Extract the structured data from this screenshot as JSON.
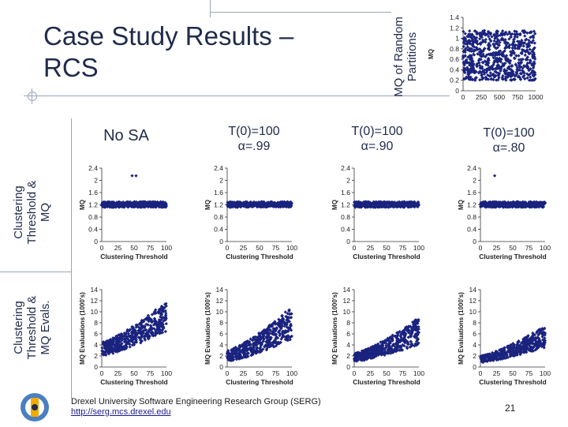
{
  "slide": {
    "title_line1": "Case Study Results –",
    "title_line2": "RCS",
    "top_chart_label_line1": "MQ of Random",
    "top_chart_label_line2": "Partitions",
    "row1_label_line1": "Clustering",
    "row1_label_line2": "Threshold &",
    "row1_label_line3": "MQ",
    "row2_label_line1": "Clustering",
    "row2_label_line2": "Threshold &",
    "row2_label_line3": "MQ Evals.",
    "col_headers": [
      {
        "line1": "No SA",
        "line2": ""
      },
      {
        "line1": "T(0)=100",
        "line2": "α=.99"
      },
      {
        "line1": "T(0)=100",
        "line2": "α=.90"
      },
      {
        "line1": "T(0)=100",
        "line2": "α=.80"
      }
    ],
    "footer_org": "Drexel University Software Engineering Research Group (SERG)",
    "footer_url": "http://serg.mcs.drexel.edu",
    "page_number": "21"
  },
  "chart_data": [
    {
      "id": "random-partitions",
      "type": "scatter",
      "ylabel": "MQ",
      "xlim": [
        0,
        1000
      ],
      "ylim": [
        0,
        1.4
      ],
      "xticks": [
        "0",
        "250",
        "500",
        "750",
        "1000"
      ],
      "yticks": [
        "0",
        "0.2",
        "0.4",
        "0.6",
        "0.8",
        "1",
        "1.2",
        "1.4"
      ],
      "y_range": [
        0.2,
        1.15
      ],
      "color": "#1a237e"
    },
    {
      "id": "mq-nosa",
      "type": "scatter",
      "ylabel": "MQ",
      "xlabel": "Clustering Threshold",
      "xlim": [
        0,
        100
      ],
      "ylim": [
        0,
        2.4
      ],
      "xticks": [
        "0",
        "25",
        "50",
        "75",
        "100"
      ],
      "yticks": [
        "0",
        "0.4",
        "0.8",
        "1.2",
        "1.6",
        "2",
        "2.4"
      ],
      "band": [
        1.12,
        1.3
      ],
      "outliers": [
        {
          "x": 47,
          "y": 2.15
        },
        {
          "x": 53,
          "y": 2.15
        }
      ],
      "color": "#1a237e"
    },
    {
      "id": "mq-a99",
      "type": "scatter",
      "ylabel": "MQ",
      "xlabel": "Clustering Threshold",
      "xlim": [
        0,
        100
      ],
      "ylim": [
        0,
        2.4
      ],
      "xticks": [
        "0",
        "25",
        "50",
        "75",
        "100"
      ],
      "yticks": [
        "0",
        "0.4",
        "0.8",
        "1.2",
        "1.6",
        "2",
        "2.4"
      ],
      "band": [
        1.12,
        1.3
      ],
      "outliers": [],
      "color": "#1a237e"
    },
    {
      "id": "mq-a90",
      "type": "scatter",
      "ylabel": "MQ",
      "xlabel": "Clustering Threshold",
      "xlim": [
        0,
        100
      ],
      "ylim": [
        0,
        2.4
      ],
      "xticks": [
        "0",
        "25",
        "50",
        "75",
        "100"
      ],
      "yticks": [
        "0",
        "0.4",
        "0.8",
        "1.2",
        "1.6",
        "2",
        "2.4"
      ],
      "band": [
        1.12,
        1.3
      ],
      "outliers": [],
      "color": "#1a237e"
    },
    {
      "id": "mq-a80",
      "type": "scatter",
      "ylabel": "MQ",
      "xlabel": "Clustering Threshold",
      "xlim": [
        0,
        100
      ],
      "ylim": [
        0,
        2.4
      ],
      "xticks": [
        "0",
        "25",
        "50",
        "75",
        "100"
      ],
      "yticks": [
        "0",
        "0.4",
        "0.8",
        "1.2",
        "1.6",
        "2",
        "2.4"
      ],
      "band": [
        1.12,
        1.3
      ],
      "outliers": [
        {
          "x": 22,
          "y": 2.15
        }
      ],
      "color": "#1a237e"
    },
    {
      "id": "evals-nosa",
      "type": "scatter",
      "ylabel": "MQ Evaluations (1000's)",
      "xlabel": "Clustering Threshold",
      "xlim": [
        0,
        100
      ],
      "ylim": [
        0,
        14
      ],
      "xticks": [
        "0",
        "25",
        "50",
        "75",
        "100"
      ],
      "yticks": [
        "0",
        "2",
        "4",
        "6",
        "8",
        "10",
        "12",
        "14"
      ],
      "trend": {
        "start_low": 2.0,
        "start_high": 4.5,
        "end_low": 6.5,
        "end_high": 12.0
      },
      "color": "#1a237e"
    },
    {
      "id": "evals-a99",
      "type": "scatter",
      "ylabel": "MQ Evaluations (1000's)",
      "xlabel": "Clustering Threshold",
      "xlim": [
        0,
        100
      ],
      "ylim": [
        0,
        14
      ],
      "xticks": [
        "0",
        "25",
        "50",
        "75",
        "100"
      ],
      "yticks": [
        "0",
        "2",
        "4",
        "6",
        "8",
        "10",
        "12",
        "14"
      ],
      "trend": {
        "start_low": 1.0,
        "start_high": 3.0,
        "end_low": 5.0,
        "end_high": 11.0
      },
      "color": "#1a237e"
    },
    {
      "id": "evals-a90",
      "type": "scatter",
      "ylabel": "MQ Evaluations (1000's)",
      "xlabel": "Clustering Threshold",
      "xlim": [
        0,
        100
      ],
      "ylim": [
        0,
        14
      ],
      "xticks": [
        "0",
        "25",
        "50",
        "75",
        "100"
      ],
      "yticks": [
        "0",
        "2",
        "4",
        "6",
        "8",
        "10",
        "12",
        "14"
      ],
      "trend": {
        "start_low": 1.0,
        "start_high": 2.5,
        "end_low": 4.0,
        "end_high": 9.0
      },
      "color": "#1a237e"
    },
    {
      "id": "evals-a80",
      "type": "scatter",
      "ylabel": "MQ Evaluations (1000's)",
      "xlabel": "Clustering Threshold",
      "xlim": [
        0,
        100
      ],
      "ylim": [
        0,
        14
      ],
      "xticks": [
        "0",
        "25",
        "50",
        "75",
        "100"
      ],
      "yticks": [
        "0",
        "2",
        "4",
        "6",
        "8",
        "10",
        "12",
        "14"
      ],
      "trend": {
        "start_low": 0.8,
        "start_high": 2.0,
        "end_low": 3.5,
        "end_high": 7.5
      },
      "color": "#1a237e"
    }
  ]
}
